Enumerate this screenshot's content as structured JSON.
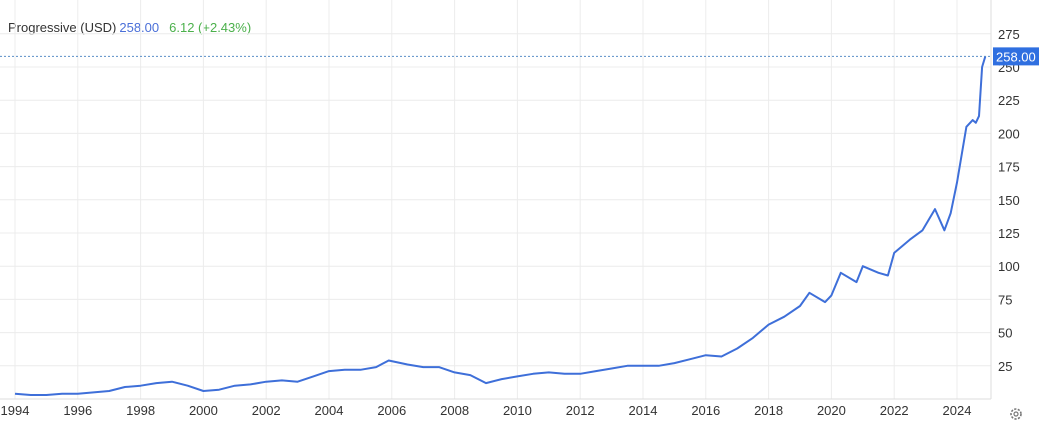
{
  "legend": {
    "name": "Progressive (USD)",
    "price": "258.00",
    "change": "6.12 (+2.43%)"
  },
  "colors": {
    "line": "#3e6fd9",
    "price_label_bg": "#2f6fe0",
    "change": "#4bb04b",
    "grid": "#ececec"
  },
  "settings_icon": "gear-icon",
  "chart_data": {
    "type": "line",
    "title": "",
    "xlabel": "",
    "ylabel": "",
    "ylim": [
      0,
      290
    ],
    "xlim": [
      1993.8,
      2025.1
    ],
    "grid": true,
    "last_value_label": "258.00",
    "y_ticks": [
      25,
      50,
      75,
      100,
      125,
      150,
      175,
      200,
      225,
      250,
      275
    ],
    "x_ticks": [
      1994,
      1996,
      1998,
      2000,
      2002,
      2004,
      2006,
      2008,
      2010,
      2012,
      2014,
      2016,
      2018,
      2020,
      2022,
      2024
    ],
    "series": [
      {
        "x": [
          1994,
          1994.5,
          1995,
          1995.5,
          1996,
          1996.5,
          1997,
          1997.5,
          1998,
          1998.5,
          1999,
          1999.5,
          2000,
          2000.5,
          2001,
          2001.5,
          2002,
          2002.5,
          2003,
          2003.5,
          2004,
          2004.5,
          2005,
          2005.5,
          2005.9,
          2006.5,
          2007,
          2007.5,
          2008,
          2008.5,
          2009,
          2009.5,
          2010,
          2010.5,
          2011,
          2011.5,
          2012,
          2012.5,
          2013,
          2013.5,
          2014,
          2014.5,
          2015,
          2015.5,
          2016,
          2016.5,
          2017,
          2017.5,
          2018,
          2018.5,
          2019,
          2019.3,
          2019.8,
          2020,
          2020.3,
          2020.8,
          2021,
          2021.5,
          2021.8,
          2022,
          2022.5,
          2022.9,
          2023.3,
          2023.6,
          2023.8,
          2024,
          2024.3,
          2024.5,
          2024.6,
          2024.7,
          2024.8,
          2024.9
        ],
        "y": [
          4,
          3,
          3,
          4,
          4,
          5,
          6,
          9,
          10,
          12,
          13,
          10,
          6,
          7,
          10,
          11,
          13,
          14,
          13,
          17,
          21,
          22,
          22,
          24,
          29,
          26,
          24,
          24,
          20,
          18,
          12,
          15,
          17,
          19,
          20,
          19,
          19,
          21,
          23,
          25,
          25,
          25,
          27,
          30,
          33,
          32,
          38,
          46,
          56,
          62,
          70,
          80,
          73,
          78,
          95,
          88,
          100,
          95,
          93,
          110,
          120,
          127,
          143,
          127,
          140,
          163,
          205,
          210,
          208,
          213,
          250,
          258
        ]
      }
    ]
  }
}
